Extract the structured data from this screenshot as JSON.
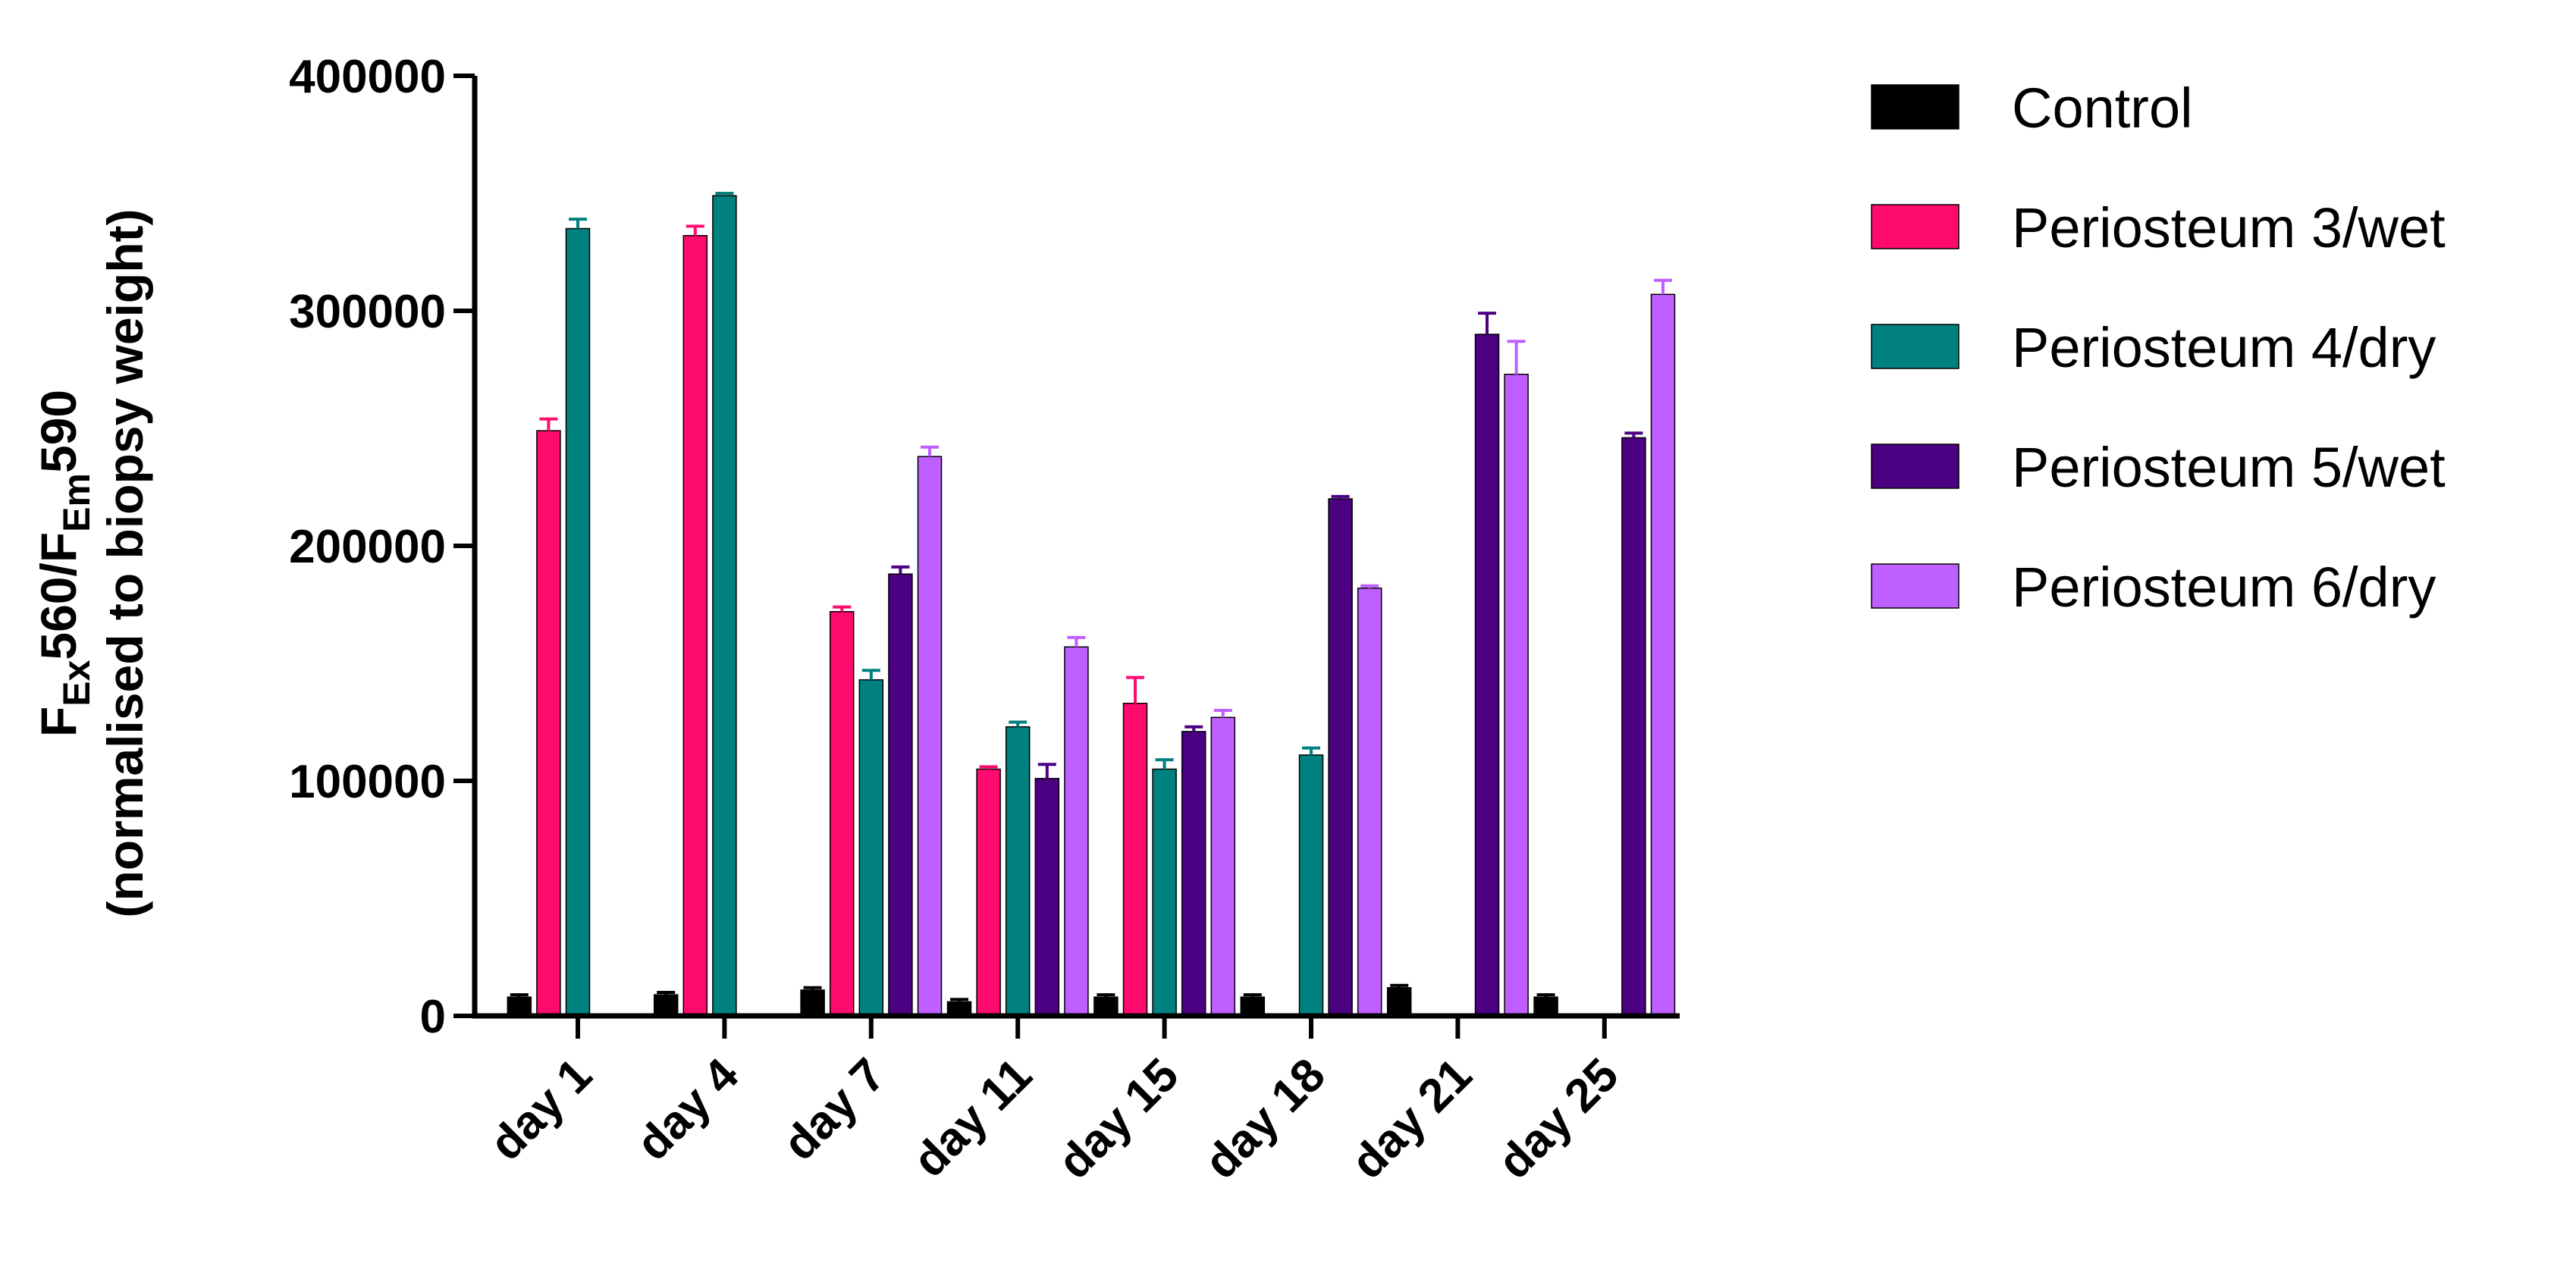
{
  "chart_data": {
    "type": "bar",
    "categories": [
      "day 1",
      "day 4",
      "day 7",
      "day 11",
      "day 15",
      "day 18",
      "day 21",
      "day 25"
    ],
    "ylabel": {
      "line1_prefix": "F",
      "line1_sub1": "Ex",
      "line1_mid": "560/F",
      "line1_sub2": "Em",
      "line1_suffix": "590",
      "line2": "(normalised to biopsy weight)"
    },
    "ylim": [
      0,
      400000
    ],
    "yticks": [
      "0",
      "100000",
      "200000",
      "300000",
      "400000"
    ],
    "ytick_values": [
      0,
      100000,
      200000,
      300000,
      400000
    ],
    "grid": false,
    "legend_position": "right",
    "series": [
      {
        "name": "Control",
        "color": "#000000",
        "values": [
          8000,
          9000,
          11000,
          6000,
          8000,
          8000,
          12000,
          8000
        ],
        "errors": [
          1000,
          1000,
          1000,
          1000,
          1000,
          1000,
          1000,
          1000
        ]
      },
      {
        "name": "Periosteum 3/wet",
        "color": "#FF0A6E",
        "values": [
          249000,
          332000,
          172000,
          105000,
          133000,
          null,
          null,
          null
        ],
        "errors": [
          5000,
          4000,
          2000,
          1000,
          11000,
          null,
          null,
          null
        ]
      },
      {
        "name": "Periosteum 4/dry",
        "color": "#00807F",
        "values": [
          335000,
          349000,
          143000,
          123000,
          105000,
          111000,
          null,
          null
        ],
        "errors": [
          4000,
          1000,
          4000,
          2000,
          4000,
          3000,
          null,
          null
        ]
      },
      {
        "name": "Periosteum 5/wet",
        "color": "#4B0082",
        "values": [
          null,
          null,
          188000,
          101000,
          121000,
          220000,
          290000,
          246000
        ],
        "errors": [
          null,
          null,
          3000,
          6000,
          2000,
          1000,
          9000,
          2000
        ]
      },
      {
        "name": "Periosteum 6/dry",
        "color": "#BF5FFF",
        "values": [
          null,
          null,
          238000,
          157000,
          127000,
          182000,
          273000,
          307000
        ],
        "errors": [
          null,
          null,
          4000,
          4000,
          3000,
          1000,
          14000,
          6000
        ]
      }
    ]
  }
}
